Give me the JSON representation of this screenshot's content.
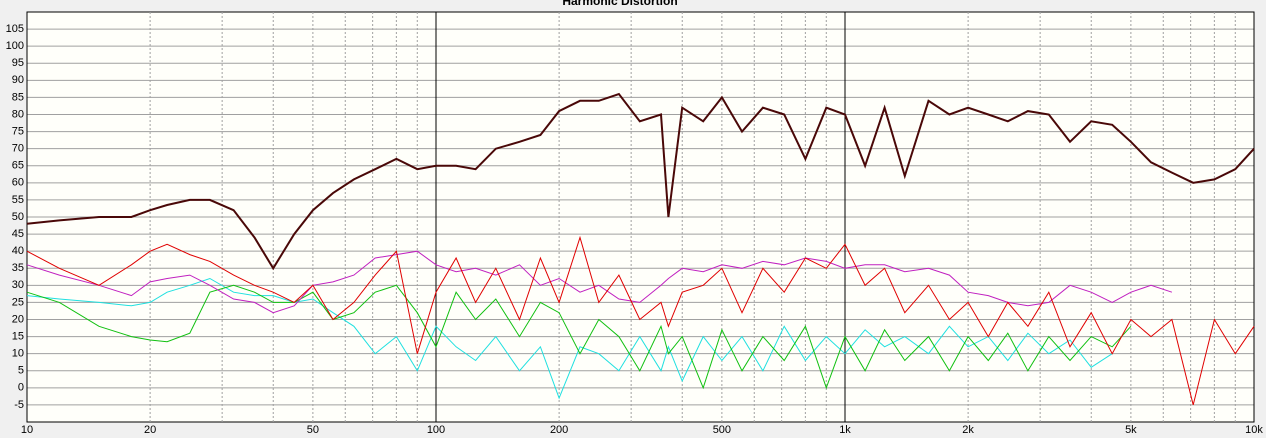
{
  "chart_data": {
    "type": "line",
    "title": "Harmonic Distortion",
    "log_x": true,
    "grid": true,
    "xlim": [
      10,
      10000
    ],
    "ylim": [
      -10,
      110
    ],
    "xticks": [
      10,
      20,
      50,
      100,
      200,
      500,
      {
        "value": 1000,
        "label": "1k"
      },
      {
        "value": 2000,
        "label": "2k"
      },
      {
        "value": 5000,
        "label": "5k"
      },
      {
        "value": 10000,
        "label": "10k"
      }
    ],
    "xminorticks": [
      30,
      40,
      60,
      70,
      80,
      90,
      300,
      400,
      600,
      700,
      800,
      900,
      3000,
      4000,
      6000,
      7000,
      8000,
      9000
    ],
    "yticks": [
      -5,
      0,
      5,
      10,
      15,
      20,
      25,
      30,
      35,
      40,
      45,
      50,
      55,
      60,
      65,
      70,
      75,
      80,
      85,
      90,
      95,
      100,
      105
    ],
    "x": [
      10,
      12,
      15,
      18,
      20,
      22,
      25,
      28,
      32,
      36,
      40,
      45,
      50,
      56,
      63,
      71,
      80,
      90,
      100,
      112,
      125,
      140,
      160,
      180,
      200,
      225,
      250,
      280,
      315,
      355,
      370,
      400,
      450,
      500,
      560,
      630,
      710,
      800,
      900,
      1000,
      1120,
      1250,
      1400,
      1600,
      1800,
      2000,
      2240,
      2500,
      2800,
      3150,
      3550,
      4000,
      4500,
      5000,
      5600,
      6300,
      7100,
      8000,
      9000,
      10000
    ],
    "series": [
      {
        "color": "#4a0808",
        "values": [
          48,
          49,
          50,
          50,
          52,
          53.5,
          55,
          55,
          52,
          44,
          35,
          45,
          52,
          57,
          61,
          64,
          67,
          64,
          65,
          65,
          64,
          70,
          72,
          74,
          81,
          84,
          84,
          86,
          78,
          80,
          50,
          82,
          78,
          85,
          75,
          82,
          80,
          67,
          82,
          80,
          65,
          82,
          62,
          84,
          80,
          82,
          80,
          78,
          81,
          80,
          72,
          78,
          77,
          72,
          66,
          63,
          60,
          61,
          64,
          70
        ]
      },
      {
        "color": "#e00000",
        "values": [
          40,
          35,
          30,
          36,
          40,
          42,
          39,
          37,
          33,
          30,
          28,
          25,
          30,
          20,
          25,
          33,
          40,
          10,
          28,
          38,
          25,
          35,
          20,
          38,
          25,
          44,
          25,
          33,
          20,
          25,
          18,
          28,
          30,
          35,
          22,
          35,
          28,
          38,
          35,
          42,
          30,
          35,
          22,
          30,
          20,
          25,
          15,
          25,
          18,
          28,
          12,
          22,
          10,
          20,
          15,
          20,
          -5,
          20,
          10,
          18
        ]
      },
      {
        "color": "#c020c0",
        "values": [
          36,
          33,
          30,
          27,
          31,
          32,
          33,
          30,
          26,
          25,
          22,
          24,
          30,
          31,
          33,
          38,
          39,
          40,
          36,
          34,
          35,
          33,
          36,
          30,
          32,
          28,
          30,
          26,
          25,
          30,
          32,
          35,
          34,
          36,
          35,
          37,
          36,
          38,
          37,
          35,
          36,
          36,
          34,
          35,
          33,
          28,
          27,
          25,
          24,
          25,
          30,
          28,
          25,
          28,
          30,
          28,
          null,
          null,
          null,
          null
        ]
      },
      {
        "color": "#10c010",
        "values": [
          28,
          25,
          18,
          15,
          14,
          13.5,
          16,
          28,
          30,
          28,
          25,
          25,
          28,
          20,
          22,
          28,
          30,
          22,
          12,
          28,
          20,
          26,
          15,
          25,
          22,
          10,
          20,
          15,
          5,
          18,
          10,
          15,
          0,
          17,
          5,
          15,
          8,
          18,
          0,
          15,
          5,
          17,
          8,
          15,
          5,
          15,
          8,
          16,
          5,
          15,
          8,
          15,
          12,
          18,
          null,
          null,
          null,
          null,
          null,
          null
        ]
      },
      {
        "color": "#20e0e0",
        "values": [
          27,
          26,
          25,
          24,
          25,
          28,
          30,
          32,
          28,
          27,
          27,
          25,
          26,
          22,
          18,
          10,
          15,
          5,
          18,
          12,
          8,
          15,
          5,
          12,
          -3,
          12,
          10,
          5,
          15,
          5,
          12,
          2,
          15,
          8,
          15,
          5,
          18,
          8,
          15,
          10,
          17,
          12,
          15,
          10,
          18,
          12,
          15,
          8,
          16,
          10,
          14,
          6,
          10,
          null,
          null,
          null,
          null,
          null,
          null,
          null
        ]
      }
    ]
  }
}
